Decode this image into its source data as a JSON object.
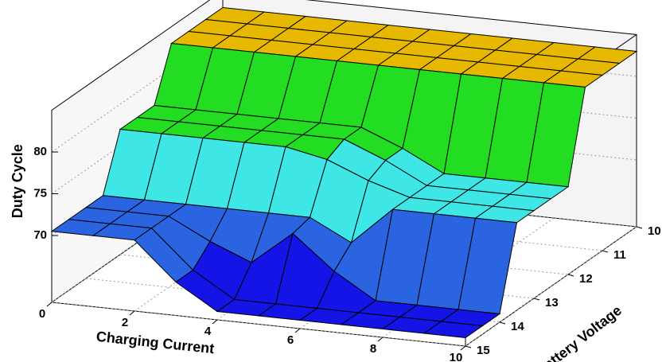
{
  "chart_data": {
    "type": "surface",
    "xlabel": "Charging Current",
    "ylabel": "Battery Voltage",
    "zlabel": "Duty Cycle",
    "x": [
      0,
      1,
      2,
      3,
      4,
      5,
      6,
      7,
      8,
      9,
      10
    ],
    "y": [
      10,
      10.5,
      11,
      11.5,
      12,
      12.5,
      13,
      13.5,
      14,
      14.5,
      15
    ],
    "z": [
      [
        83,
        83,
        83,
        83,
        83,
        83,
        83,
        83,
        83,
        83,
        83
      ],
      [
        83,
        83,
        83,
        83,
        83,
        83,
        83,
        83,
        83,
        83,
        83
      ],
      [
        83,
        83,
        83,
        83,
        83,
        83,
        83,
        83,
        83,
        83,
        83
      ],
      [
        83,
        83,
        83,
        83,
        83,
        83,
        83,
        83,
        83,
        83,
        83
      ],
      [
        77,
        77,
        77,
        77,
        77,
        77,
        75,
        72.5,
        72.5,
        72.5,
        72.5
      ],
      [
        77,
        77,
        77,
        77,
        77,
        77,
        75,
        72.5,
        72.5,
        72.5,
        72.5
      ],
      [
        77,
        77,
        77,
        77,
        77,
        76,
        74,
        72.5,
        72.5,
        72.5,
        72.5
      ],
      [
        70.5,
        70.5,
        70.5,
        70.5,
        70.5,
        70.5,
        68,
        72.5,
        72.5,
        72.5,
        72.5
      ],
      [
        70.5,
        70.5,
        70.5,
        68,
        66,
        70,
        66,
        63,
        63,
        63,
        63
      ],
      [
        70.5,
        70.5,
        70.5,
        66,
        63,
        63,
        63,
        63,
        63,
        63,
        63
      ],
      [
        70.5,
        70.5,
        70.5,
        66,
        63,
        63,
        63,
        63,
        63,
        63,
        63
      ]
    ],
    "xlim": [
      0,
      10
    ],
    "ylim": [
      10,
      15
    ],
    "zlim": [
      62,
      85
    ],
    "xticks": [
      0,
      2,
      4,
      6,
      8,
      10
    ],
    "yticks": [
      10,
      11,
      12,
      13,
      14,
      15
    ],
    "zticks": [
      70,
      75,
      80
    ],
    "colormap": [
      "#1414e6",
      "#2a64e0",
      "#3fe6e6",
      "#22dd22",
      "#e6b800"
    ]
  }
}
